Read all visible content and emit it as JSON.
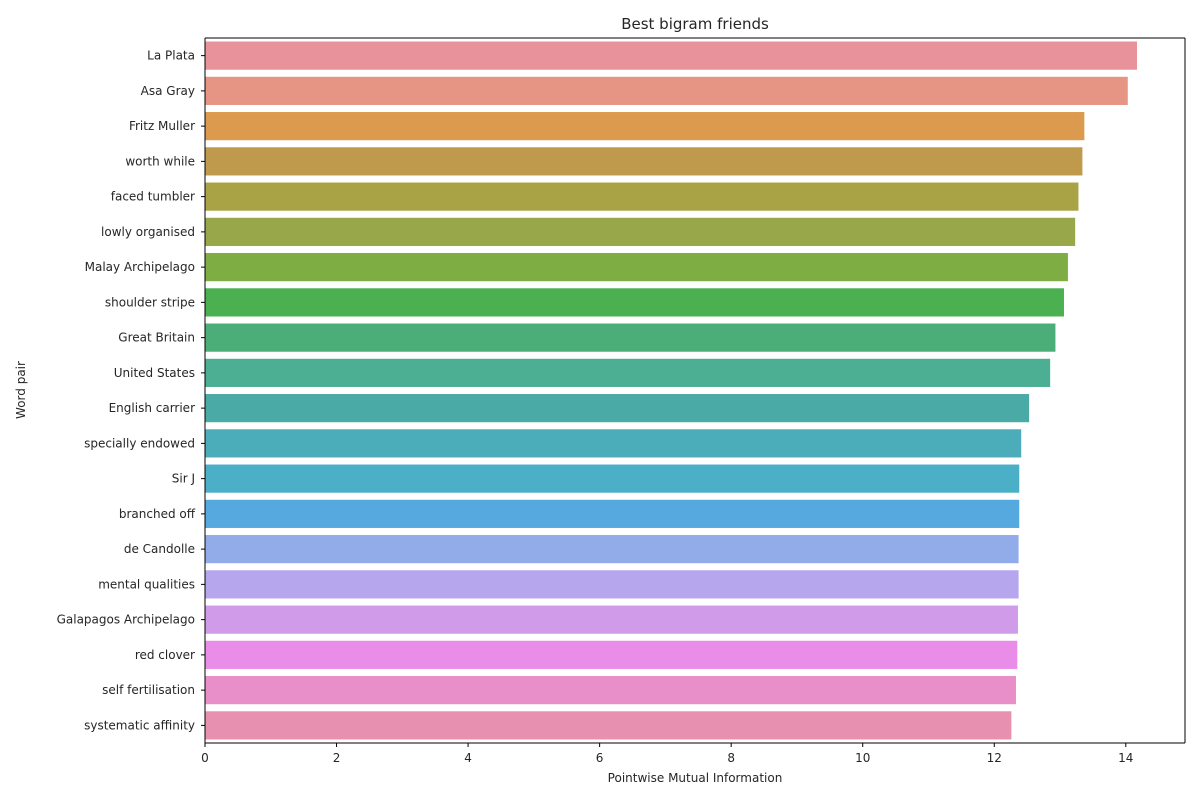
{
  "chart_data": {
    "type": "bar",
    "orientation": "horizontal",
    "title": "Best bigram friends",
    "xlabel": "Pointwise Mutual Information",
    "ylabel": "Word pair",
    "xlim": [
      0,
      14.9
    ],
    "xticks": [
      0,
      2,
      4,
      6,
      8,
      10,
      12,
      14
    ],
    "grid": false,
    "categories": [
      "La Plata",
      "Asa Gray",
      "Fritz Muller",
      "worth while",
      "faced tumbler",
      "lowly organised",
      "Malay Archipelago",
      "shoulder stripe",
      "Great Britain",
      "United States",
      "English carrier",
      "specially endowed",
      "Sir J",
      "branched off",
      "de Candolle",
      "mental qualities",
      "Galapagos Archipelago",
      "red clover",
      "self fertilisation",
      "systematic affinity"
    ],
    "values": [
      14.17,
      14.03,
      13.37,
      13.34,
      13.28,
      13.23,
      13.12,
      13.06,
      12.93,
      12.85,
      12.53,
      12.41,
      12.38,
      12.38,
      12.37,
      12.37,
      12.36,
      12.35,
      12.33,
      12.26
    ],
    "colors": [
      "#e8929b",
      "#e69584",
      "#db9a4d",
      "#c09a4c",
      "#a9a346",
      "#98a74a",
      "#7ead44",
      "#4bb04f",
      "#4bad78",
      "#4cae93",
      "#4aaaa6",
      "#4aadb9",
      "#4cafc8",
      "#56a9df",
      "#92acea",
      "#b6a6ee",
      "#d09be9",
      "#e98de8",
      "#e88ec9",
      "#e890b0"
    ]
  }
}
